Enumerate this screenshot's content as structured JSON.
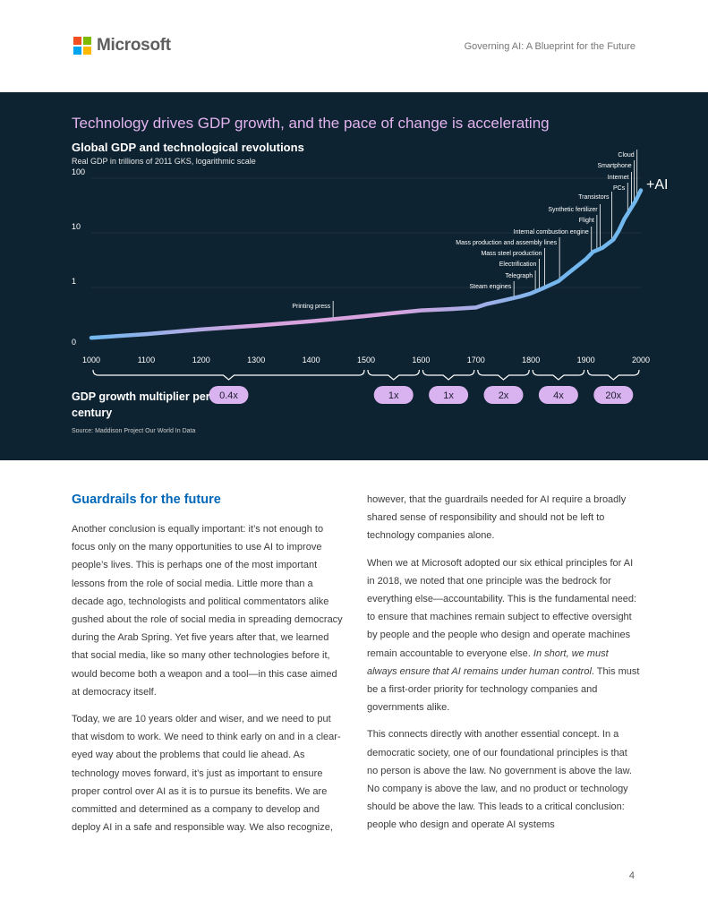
{
  "header": {
    "brand": "Microsoft",
    "document_title": "Governing AI: A Blueprint for the Future",
    "logo_colors": [
      "#f25022",
      "#7fba00",
      "#00a4ef",
      "#ffb900"
    ]
  },
  "chart_data": {
    "type": "line",
    "headline": "Technology drives GDP growth, and the pace of change is accelerating",
    "title": "Global GDP and technological revolutions",
    "subtitle": "Real GDP in trillions of 2011 GKS, logarithmic scale",
    "y_scale": "log",
    "y_ticks": [
      "100",
      "10",
      "1",
      "0"
    ],
    "x_ticks": [
      "1000",
      "1100",
      "1200",
      "1300",
      "1400",
      "1500",
      "1600",
      "1700",
      "1800",
      "1900",
      "2000"
    ],
    "series": [
      {
        "name": "Global GDP",
        "x": [
          1000,
          1100,
          1200,
          1300,
          1400,
          1500,
          1550,
          1600,
          1650,
          1700,
          1720,
          1750,
          1780,
          1800,
          1820,
          1850,
          1870,
          1900,
          1913,
          1930,
          1950,
          1960,
          1970,
          1980,
          1990,
          2000
        ],
        "y": [
          0.12,
          0.14,
          0.17,
          0.2,
          0.24,
          0.3,
          0.34,
          0.38,
          0.4,
          0.43,
          0.5,
          0.58,
          0.68,
          0.78,
          0.95,
          1.3,
          1.9,
          3.3,
          4.5,
          5.3,
          7.5,
          11,
          18,
          26,
          38,
          60
        ]
      }
    ],
    "annotations": [
      {
        "label": "Printing press",
        "year": 1440
      },
      {
        "label": "Steam engines",
        "year": 1769
      },
      {
        "label": "Telegraph",
        "year": 1808
      },
      {
        "label": "Electrification",
        "year": 1815
      },
      {
        "label": "Mass steel production",
        "year": 1825
      },
      {
        "label": "Mass production and assembly lines",
        "year": 1852
      },
      {
        "label": "Internal combustion engine",
        "year": 1910
      },
      {
        "label": "Flight",
        "year": 1920
      },
      {
        "label": "Synthetic fertilizer",
        "year": 1926
      },
      {
        "label": "Transistors",
        "year": 1947
      },
      {
        "label": "PCs",
        "year": 1976
      },
      {
        "label": "Internet",
        "year": 1983
      },
      {
        "label": "Smartphone",
        "year": 1988
      },
      {
        "label": "Cloud",
        "year": 1993
      }
    ],
    "callout": "+AI",
    "multiplier_label": "GDP growth multiplier per century",
    "multipliers": [
      {
        "span": [
          1000,
          1500
        ],
        "value": "0.4x"
      },
      {
        "span": [
          1500,
          1600
        ],
        "value": "1x"
      },
      {
        "span": [
          1600,
          1700
        ],
        "value": "1x"
      },
      {
        "span": [
          1700,
          1800
        ],
        "value": "2x"
      },
      {
        "span": [
          1800,
          1900
        ],
        "value": "4x"
      },
      {
        "span": [
          1900,
          2000
        ],
        "value": "20x"
      }
    ],
    "source": "Source: Maddison Project Our World In Data",
    "colors": {
      "background": "#0e2331",
      "headline": "#e3b3ef",
      "line_start": "#d7a3df",
      "line_end": "#72b8ef",
      "pill": "#d9b3ef",
      "axis": "#ffffff"
    }
  },
  "body": {
    "section_heading": "Guardrails for the future",
    "left_paragraphs": [
      "Another conclusion is equally important: it’s not enough to focus only on the many opportunities to use AI to improve people’s lives. This is perhaps one of the most important lessons from the role of social media. Little more than a decade ago, technologists and political commentators alike gushed about the role of social media in spreading democracy during the Arab Spring. Yet five years after that, we learned that social media, like so many other technologies before it, would become both a weapon and a tool—in this case aimed at democracy itself.",
      "Today, we are 10 years older and wiser, and we need to put that wisdom to work. We need to think early on and in a clear-eyed way about the problems that could lie ahead. As technology moves forward, it’s just as important to ensure proper control over AI as it is to pursue its benefits. We are committed and determined as a company to develop and deploy AI in a safe and responsible way. We also recognize,"
    ],
    "right_p1": "however, that the guardrails needed for AI require a broadly shared sense of responsibility and should not be left to technology companies alone.",
    "right_p2_before": "When we at Microsoft adopted our six ethical principles for AI in 2018, we noted that one principle was the bedrock for everything else—accountability. This is the fundamental need: to ensure that machines remain subject to effective oversight by people and the people who design and operate machines remain accountable to everyone else. ",
    "right_p2_emphasis": "In short, we must always ensure that AI remains under human control",
    "right_p2_after": ". This must be a first-order priority for technology companies and governments alike.",
    "right_p3": "This connects directly with another essential concept. In a democratic society, one of our foundational principles is that no person is above the law. No government is above the law. No company is above the law, and no product or technology should be above the law. This leads to a critical conclusion: people who design and operate AI systems"
  },
  "footer": {
    "page_number": "4"
  }
}
